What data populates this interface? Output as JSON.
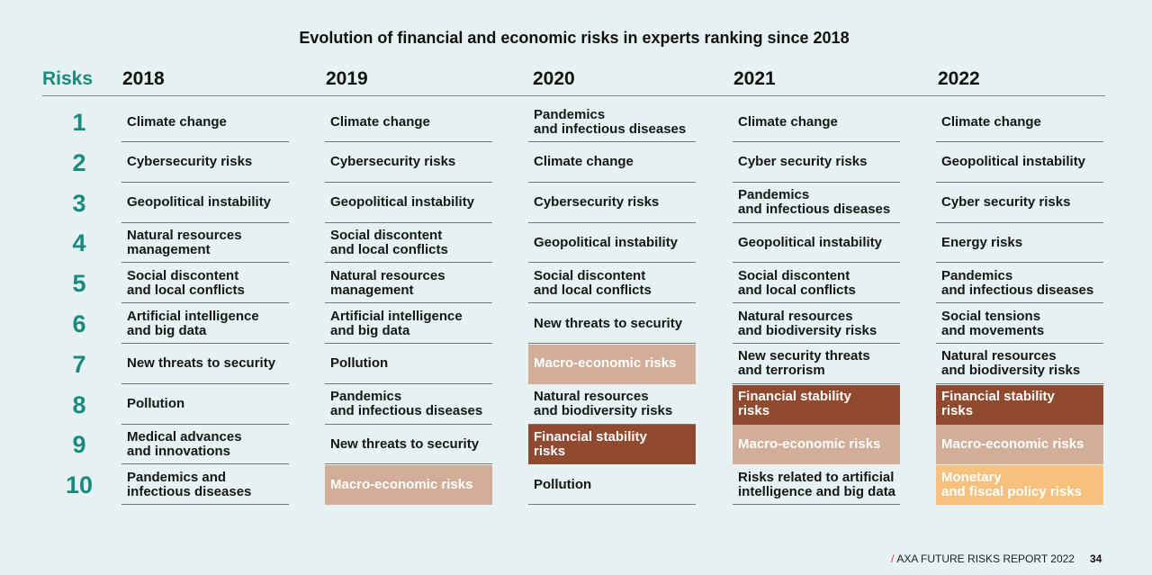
{
  "title": "Evolution of financial and economic risks in experts ranking since 2018",
  "risks_label": "Risks",
  "years": [
    "2018",
    "2019",
    "2020",
    "2021",
    "2022"
  ],
  "ranks": [
    "1",
    "2",
    "3",
    "4",
    "5",
    "6",
    "7",
    "8",
    "9",
    "10"
  ],
  "highlight_colors": {
    "macro": "#d2ad98",
    "financial": "#8f4a30",
    "monetary": "#f7c07d",
    "accent": "#1a8a80"
  },
  "columns": [
    {
      "year": "2018",
      "items": [
        {
          "text": "Climate change"
        },
        {
          "text": "Cybersecurity risks"
        },
        {
          "text": "Geopolitical instability"
        },
        {
          "text": "Natural resources\nmanagement"
        },
        {
          "text": "Social discontent\nand local conflicts"
        },
        {
          "text": "Artificial intelligence\nand big data"
        },
        {
          "text": "New threats to security"
        },
        {
          "text": "Pollution"
        },
        {
          "text": "Medical advances\nand innovations"
        },
        {
          "text": "Pandemics and\ninfectious diseases"
        }
      ]
    },
    {
      "year": "2019",
      "items": [
        {
          "text": "Climate change"
        },
        {
          "text": "Cybersecurity risks"
        },
        {
          "text": "Geopolitical instability"
        },
        {
          "text": "Social discontent\nand local conflicts"
        },
        {
          "text": "Natural resources\nmanagement"
        },
        {
          "text": "Artificial intelligence\nand big data"
        },
        {
          "text": "Pollution"
        },
        {
          "text": "Pandemics\nand infectious diseases"
        },
        {
          "text": "New threats to security"
        },
        {
          "text": "Macro-economic risks",
          "highlight": "macro"
        }
      ]
    },
    {
      "year": "2020",
      "items": [
        {
          "text": "Pandemics\nand infectious diseases"
        },
        {
          "text": "Climate change"
        },
        {
          "text": "Cybersecurity risks"
        },
        {
          "text": "Geopolitical instability"
        },
        {
          "text": "Social discontent\nand local conflicts"
        },
        {
          "text": "New threats to security"
        },
        {
          "text": "Macro-economic risks",
          "highlight": "macro"
        },
        {
          "text": "Natural resources\nand biodiversity risks"
        },
        {
          "text": "Financial stability\nrisks",
          "highlight": "financial"
        },
        {
          "text": "Pollution"
        }
      ]
    },
    {
      "year": "2021",
      "items": [
        {
          "text": "Climate change"
        },
        {
          "text": "Cyber security risks"
        },
        {
          "text": "Pandemics\nand infectious diseases"
        },
        {
          "text": "Geopolitical instability"
        },
        {
          "text": "Social discontent\nand local conflicts"
        },
        {
          "text": "Natural resources\nand biodiversity risks"
        },
        {
          "text": "New security threats\nand terrorism"
        },
        {
          "text": "Financial stability\nrisks",
          "highlight": "financial"
        },
        {
          "text": "Macro-economic risks",
          "highlight": "macro"
        },
        {
          "text": "Risks related to artificial\nintelligence and big data"
        }
      ]
    },
    {
      "year": "2022",
      "items": [
        {
          "text": "Climate change"
        },
        {
          "text": "Geopolitical instability"
        },
        {
          "text": "Cyber security risks"
        },
        {
          "text": "Energy risks"
        },
        {
          "text": "Pandemics\nand infectious diseases"
        },
        {
          "text": "Social tensions\nand movements"
        },
        {
          "text": "Natural resources\nand biodiversity risks"
        },
        {
          "text": "Financial stability\nrisks",
          "highlight": "financial"
        },
        {
          "text": "Macro-economic risks",
          "highlight": "macro"
        },
        {
          "text": "Monetary\nand fiscal policy risks",
          "highlight": "monetary"
        }
      ]
    }
  ],
  "footer": {
    "slash": "/",
    "report": "AXA FUTURE RISKS REPORT 2022",
    "page": "34"
  }
}
